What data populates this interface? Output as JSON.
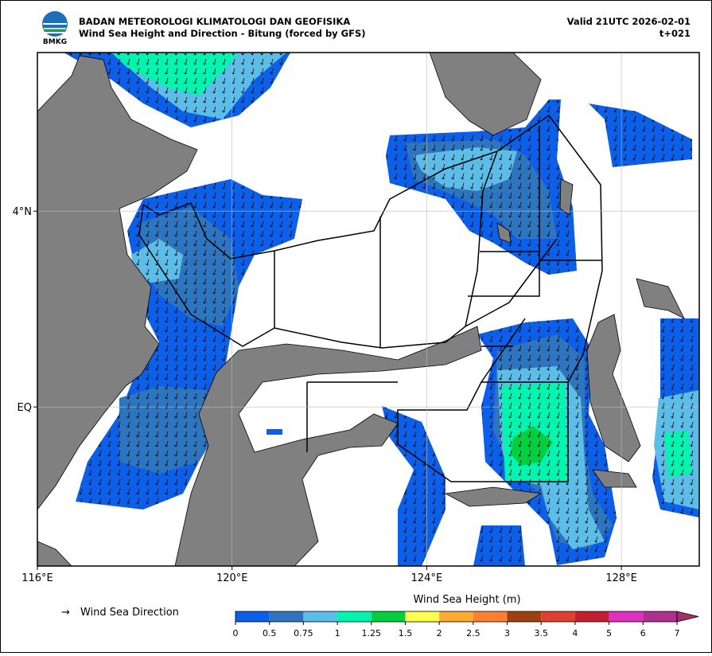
{
  "header": {
    "logo": "BMKG",
    "org": "BADAN METEOROLOGI KLIMATOLOGI DAN GEOFISIKA",
    "title": "Wind Sea Height and Direction - Bitung (forced by GFS)",
    "valid": "Valid 21UTC 2026-02-01",
    "lead": "t+021"
  },
  "map": {
    "xlim": [
      116,
      129.6
    ],
    "ylim": [
      -3.25,
      7.24
    ],
    "xticks": [
      {
        "value": 116,
        "label": "116°E"
      },
      {
        "value": 120,
        "label": "120°E"
      },
      {
        "value": 124,
        "label": "124°E"
      },
      {
        "value": 128,
        "label": "128°E"
      }
    ],
    "yticks": [
      {
        "value": 4,
        "label": "4°N"
      },
      {
        "value": 0,
        "label": "EQ"
      }
    ],
    "grid": true
  },
  "legend": {
    "symbol": "→",
    "label": "Wind Sea Direction"
  },
  "colorbar": {
    "label": "Wind Sea Height (m)",
    "bounds": [
      0,
      0.5,
      0.75,
      1,
      1.25,
      1.5,
      2,
      2.5,
      3,
      3.5,
      4,
      5,
      6,
      7
    ],
    "colors": [
      "#0b5fe8",
      "#2e75c0",
      "#5bbde8",
      "#00f5b0",
      "#00d040",
      "#ffff50",
      "#ffaa30",
      "#ff8030",
      "#a04010",
      "#e04030",
      "#c02030",
      "#e030c0",
      "#b03090"
    ],
    "extend_color": "#a03070"
  }
}
